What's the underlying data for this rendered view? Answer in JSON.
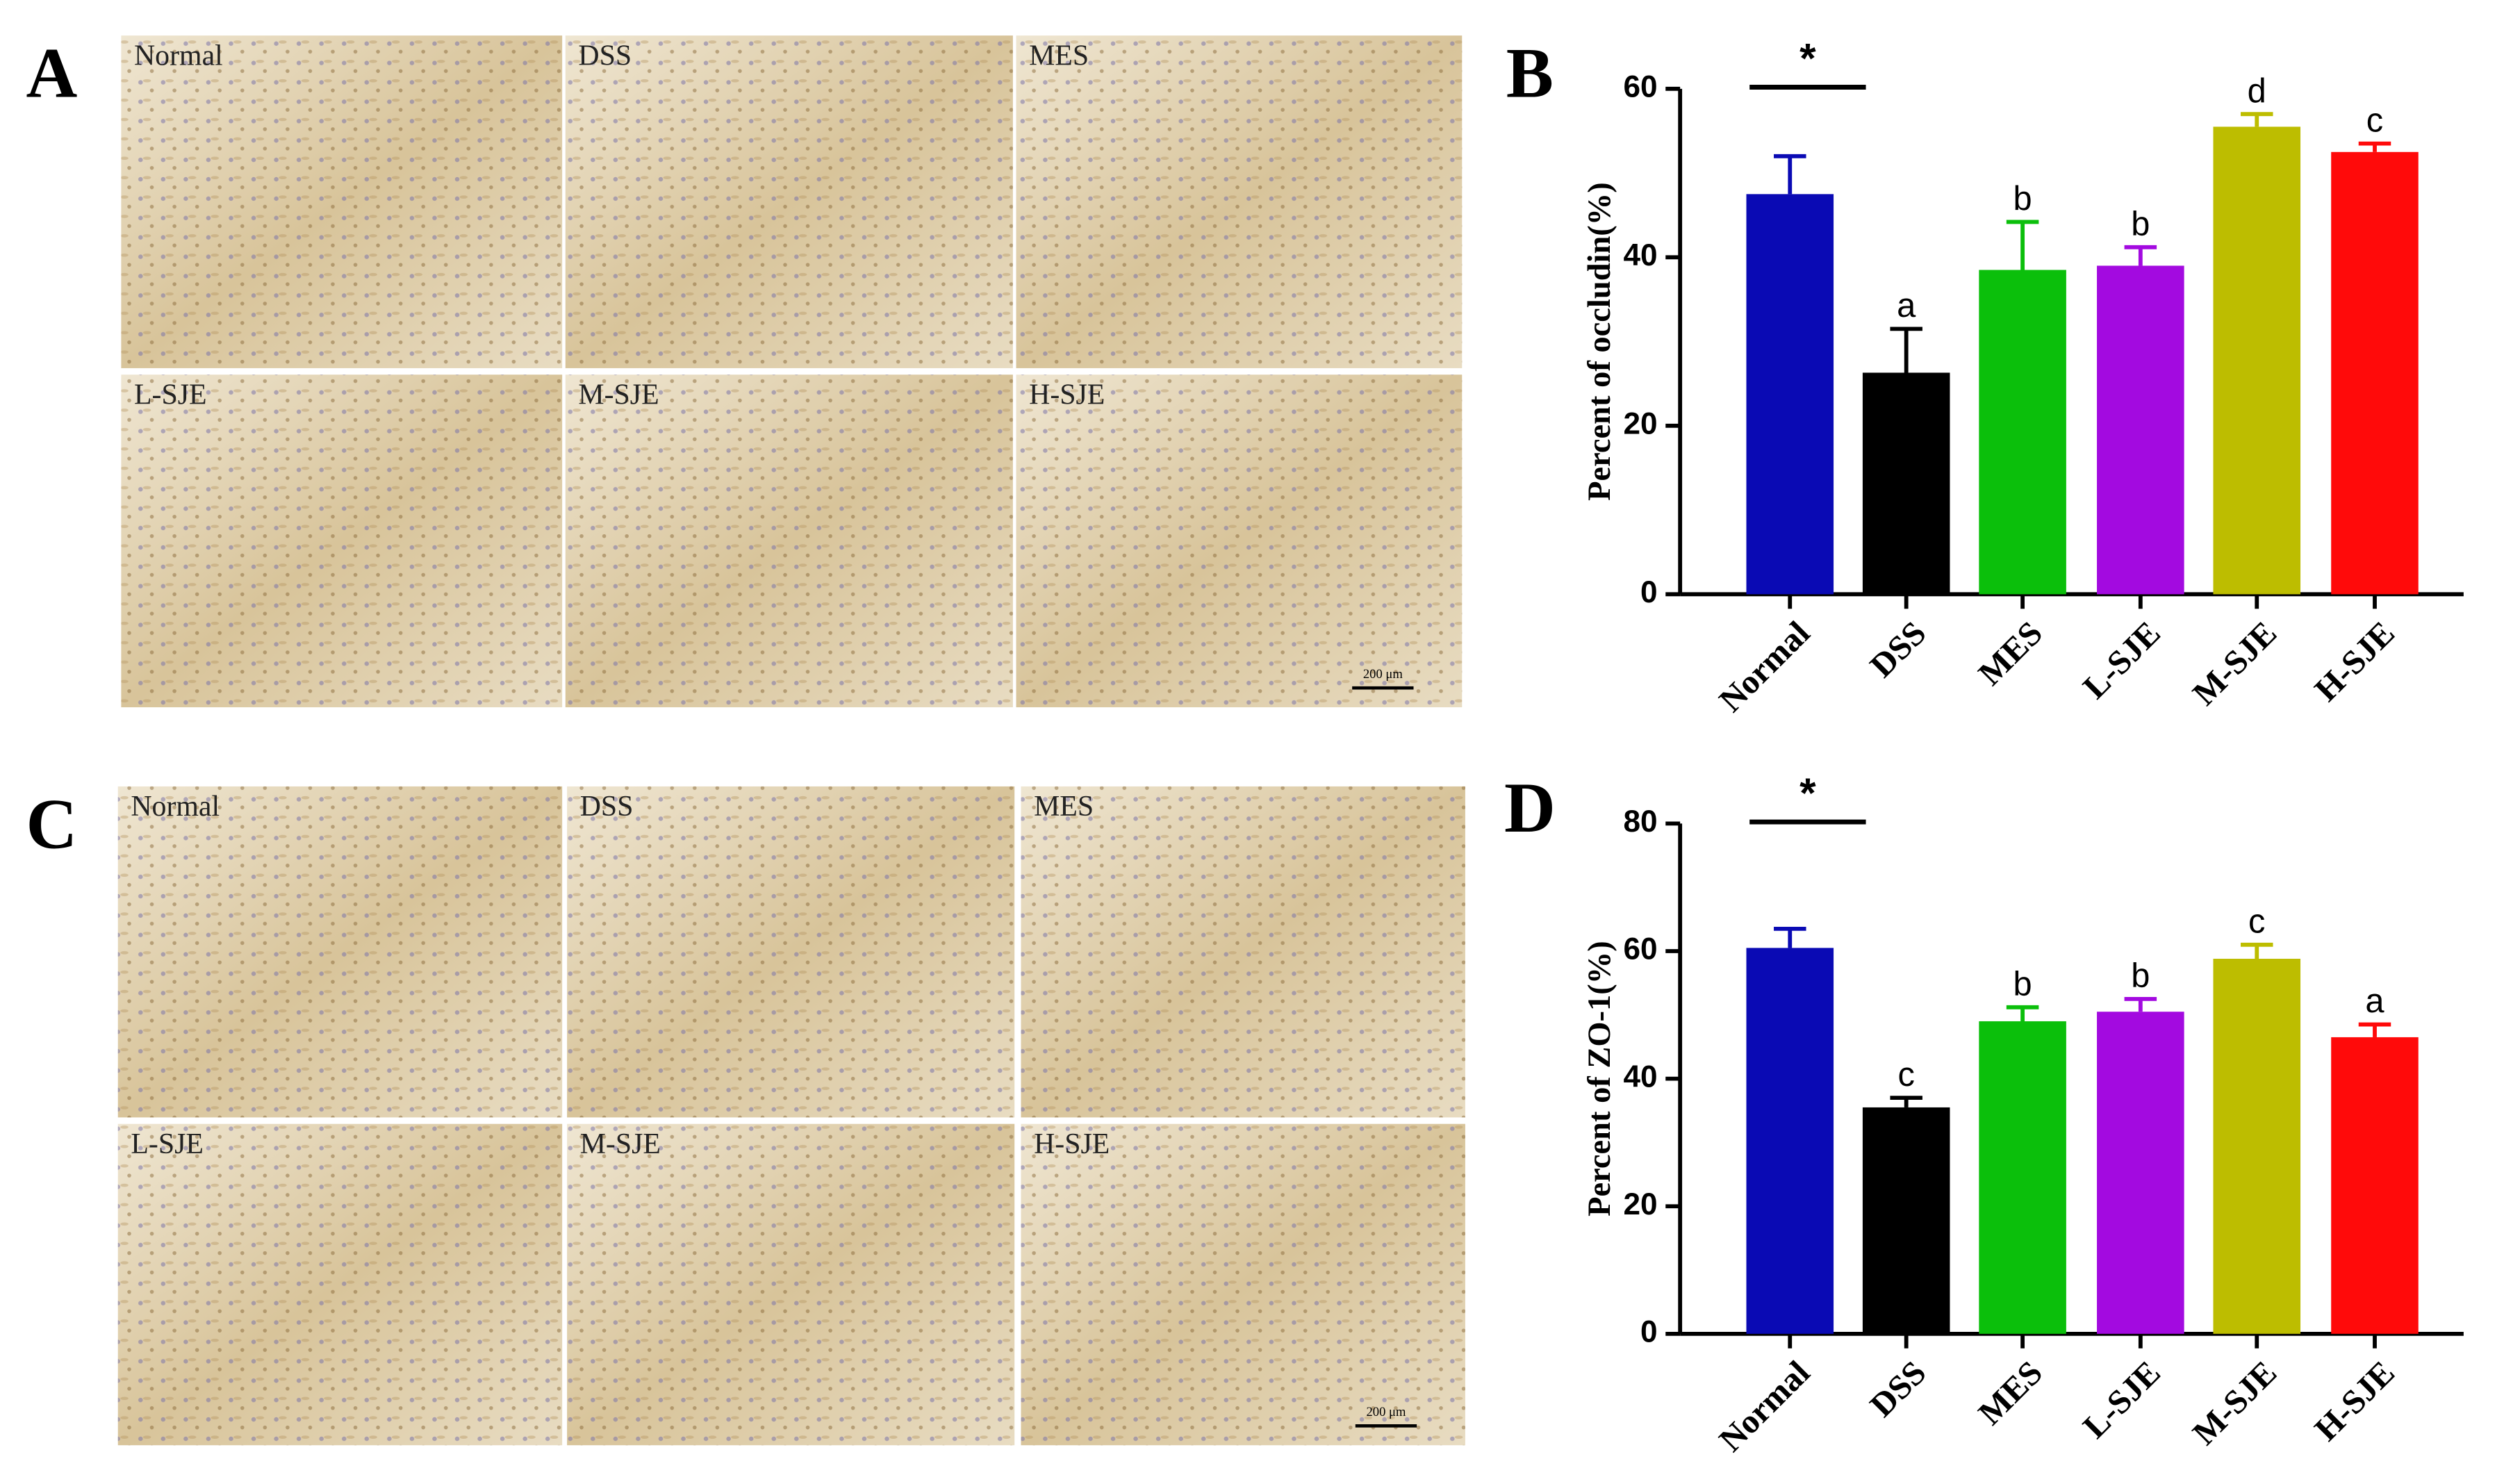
{
  "micrographs": [
    {
      "panel": "A",
      "labels": [
        "Normal",
        "DSS",
        "MES",
        "L-SJE",
        "M-SJE",
        "H-SJE"
      ],
      "scale_bar": "200 μm"
    },
    {
      "panel": "C",
      "labels": [
        "Normal",
        "DSS",
        "MES",
        "L-SJE",
        "M-SJE",
        "H-SJE"
      ],
      "scale_bar": "200 μm"
    }
  ],
  "chart_data": [
    {
      "type": "bar",
      "panel": "B",
      "y_label": "Percent of occludin(%)",
      "categories": [
        "Normal",
        "DSS",
        "MES",
        "L-SJE",
        "M-SJE",
        "H-SJE"
      ],
      "values": [
        47.5,
        26.3,
        38.5,
        39,
        55.5,
        52.5
      ],
      "errors": [
        4.5,
        5.2,
        5.7,
        2.2,
        1.5,
        1
      ],
      "letters": [
        null,
        "a",
        "b",
        "b",
        "d",
        "c"
      ],
      "colors": [
        "#0a0ab4",
        "#000000",
        "#0bbf0b",
        "#a30ae0",
        "#bdbd00",
        "#ff0a0a"
      ],
      "significance": "*",
      "ylim": [
        0,
        60
      ],
      "yticks": [
        0,
        20,
        40,
        60
      ]
    },
    {
      "type": "bar",
      "panel": "D",
      "y_label": "Percent of ZO-1(%)",
      "categories": [
        "Normal",
        "DSS",
        "MES",
        "L-SJE",
        "M-SJE",
        "H-SJE"
      ],
      "values": [
        60.5,
        35.5,
        49,
        50.5,
        58.8,
        46.5
      ],
      "errors": [
        3,
        1.5,
        2.2,
        2,
        2.2,
        2
      ],
      "letters": [
        null,
        "c",
        "b",
        "b",
        "c",
        "a"
      ],
      "colors": [
        "#0a0ab4",
        "#000000",
        "#0bbf0b",
        "#a30ae0",
        "#bdbd00",
        "#ff0a0a"
      ],
      "significance": "*",
      "ylim": [
        0,
        80
      ],
      "yticks": [
        0,
        20,
        40,
        60,
        80
      ]
    }
  ]
}
